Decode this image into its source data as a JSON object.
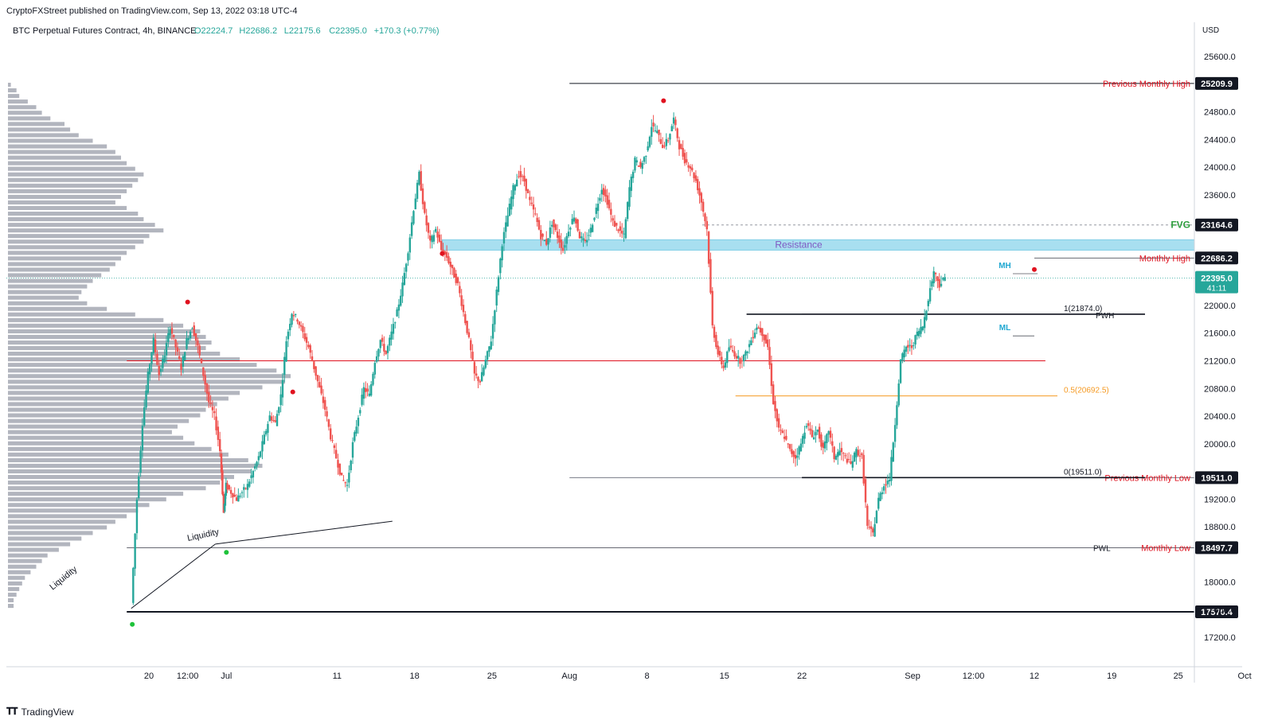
{
  "caption": "CryptoFXStreet published on TradingView.com, Sep 13, 2022 03:18 UTC-4",
  "footer": {
    "brand": "TradingView",
    "logo": "tradingview-logo-icon"
  },
  "chart_data": {
    "type": "candlestick",
    "symbol_line": {
      "name": "BTC Perpetual Futures Contract, 4h, BINANCE",
      "o": "O22224.7",
      "h": "H22686.2",
      "l": "L22175.6",
      "c": "C22395.0",
      "change": "+170.3 (+0.77%)"
    },
    "currency": "USD",
    "colors": {
      "up": "#26a69a",
      "down": "#ef5350",
      "profile": "#b2b5be",
      "resistance": "#a8dff0",
      "fvg": "#2e9e3e",
      "label_red": "#e0121f",
      "fib_orange": "#f59a23",
      "ml_mh": "#1fa7d1",
      "resistance_text": "#7e57c2",
      "price_tag": "#26a69a"
    },
    "y_ticks": [
      "25600.0",
      "24800.0",
      "24400.0",
      "24000.0",
      "23600.0",
      "22000.0",
      "21600.0",
      "21200.0",
      "20800.0",
      "20400.0",
      "20000.0",
      "19200.0",
      "18800.0",
      "18000.0",
      "17600.0",
      "17200.0"
    ],
    "y_ticks_values": [
      25600,
      24800,
      24400,
      24000,
      23600,
      22000,
      21600,
      21200,
      20800,
      20400,
      20000,
      19200,
      18800,
      18000,
      17600,
      17200
    ],
    "x_ticks": [
      {
        "label": "20",
        "day": -10
      },
      {
        "label": "12:00",
        "day": -6.5
      },
      {
        "label": "Jul",
        "day": -3
      },
      {
        "label": "11",
        "day": 7
      },
      {
        "label": "18",
        "day": 14
      },
      {
        "label": "25",
        "day": 21
      },
      {
        "label": "Aug",
        "day": 28
      },
      {
        "label": "8",
        "day": 35
      },
      {
        "label": "15",
        "day": 42
      },
      {
        "label": "22",
        "day": 49
      },
      {
        "label": "Sep",
        "day": 59
      },
      {
        "label": "12:00",
        "day": 64.5
      },
      {
        "label": "12",
        "day": 70
      },
      {
        "label": "19",
        "day": 77
      },
      {
        "label": "25",
        "day": 83
      },
      {
        "label": "Oct",
        "day": 89
      }
    ],
    "price_path": [
      [
        -11.5,
        17700
      ],
      [
        -11,
        19200
      ],
      [
        -10.5,
        20300
      ],
      [
        -10,
        21000
      ],
      [
        -9.5,
        21500
      ],
      [
        -9,
        21000
      ],
      [
        -8.5,
        21300
      ],
      [
        -8,
        21700
      ],
      [
        -7.5,
        21400
      ],
      [
        -7,
        21100
      ],
      [
        -6.5,
        21500
      ],
      [
        -6,
        21700
      ],
      [
        -5.5,
        21400
      ],
      [
        -5,
        21000
      ],
      [
        -4.5,
        20600
      ],
      [
        -4,
        20400
      ],
      [
        -3.5,
        19900
      ],
      [
        -3.2,
        19000
      ],
      [
        -3,
        19400
      ],
      [
        -2.5,
        19300
      ],
      [
        -2,
        19200
      ],
      [
        -1.5,
        19300
      ],
      [
        -1,
        19400
      ],
      [
        -0.5,
        19600
      ],
      [
        0,
        19800
      ],
      [
        0.5,
        20100
      ],
      [
        1,
        20400
      ],
      [
        1.5,
        20300
      ],
      [
        2,
        20700
      ],
      [
        2.5,
        21500
      ],
      [
        3,
        21900
      ],
      [
        3.5,
        21800
      ],
      [
        4,
        21600
      ],
      [
        4.5,
        21400
      ],
      [
        5,
        21100
      ],
      [
        5.5,
        20800
      ],
      [
        6,
        20500
      ],
      [
        6.5,
        20100
      ],
      [
        7,
        19800
      ],
      [
        7.5,
        19500
      ],
      [
        8,
        19400
      ],
      [
        8.5,
        20000
      ],
      [
        9,
        20400
      ],
      [
        9.5,
        20800
      ],
      [
        10,
        20700
      ],
      [
        10.5,
        21200
      ],
      [
        11,
        21500
      ],
      [
        11.5,
        21300
      ],
      [
        12,
        21600
      ],
      [
        12.5,
        21900
      ],
      [
        13,
        22300
      ],
      [
        13.5,
        22800
      ],
      [
        14,
        23400
      ],
      [
        14.5,
        23900
      ],
      [
        15,
        23300
      ],
      [
        15.5,
        22900
      ],
      [
        16,
        23100
      ],
      [
        16.5,
        22800
      ],
      [
        17,
        22700
      ],
      [
        17.5,
        22500
      ],
      [
        18,
        22300
      ],
      [
        18.5,
        21900
      ],
      [
        19,
        21500
      ],
      [
        19.5,
        21000
      ],
      [
        20,
        20900
      ],
      [
        20.5,
        21200
      ],
      [
        21,
        21500
      ],
      [
        21.5,
        22200
      ],
      [
        22,
        22900
      ],
      [
        22.5,
        23300
      ],
      [
        23,
        23700
      ],
      [
        23.5,
        23900
      ],
      [
        24,
        23800
      ],
      [
        24.5,
        23500
      ],
      [
        25,
        23300
      ],
      [
        25.5,
        23000
      ],
      [
        26,
        22900
      ],
      [
        26.5,
        23200
      ],
      [
        27,
        23000
      ],
      [
        27.5,
        22800
      ],
      [
        28,
        23100
      ],
      [
        28.5,
        23300
      ],
      [
        29,
        23000
      ],
      [
        29.5,
        22900
      ],
      [
        30,
        23100
      ],
      [
        30.5,
        23400
      ],
      [
        31,
        23700
      ],
      [
        31.5,
        23500
      ],
      [
        32,
        23200
      ],
      [
        32.5,
        23100
      ],
      [
        33,
        23000
      ],
      [
        33.5,
        23700
      ],
      [
        34,
        24100
      ],
      [
        34.5,
        24000
      ],
      [
        35,
        24200
      ],
      [
        35.5,
        24600
      ],
      [
        36,
        24500
      ],
      [
        36.5,
        24300
      ],
      [
        37,
        24400
      ],
      [
        37.5,
        24700
      ],
      [
        38,
        24300
      ],
      [
        38.5,
        24100
      ],
      [
        39,
        24000
      ],
      [
        39.5,
        23800
      ],
      [
        40,
        23500
      ],
      [
        40.5,
        23100
      ],
      [
        41,
        21700
      ],
      [
        41.5,
        21300
      ],
      [
        42,
        21100
      ],
      [
        42.5,
        21400
      ],
      [
        43,
        21300
      ],
      [
        43.5,
        21200
      ],
      [
        44,
        21300
      ],
      [
        44.5,
        21500
      ],
      [
        45,
        21700
      ],
      [
        45.5,
        21600
      ],
      [
        46,
        21400
      ],
      [
        46.5,
        20600
      ],
      [
        47,
        20200
      ],
      [
        47.5,
        20100
      ],
      [
        48,
        19900
      ],
      [
        48.5,
        19800
      ],
      [
        49,
        20000
      ],
      [
        49.5,
        20300
      ],
      [
        50,
        20100
      ],
      [
        50.5,
        20200
      ],
      [
        51,
        19900
      ],
      [
        51.5,
        20200
      ],
      [
        52,
        19800
      ],
      [
        52.5,
        19900
      ],
      [
        53,
        19800
      ],
      [
        53.5,
        19700
      ],
      [
        54,
        19900
      ],
      [
        54.5,
        19800
      ],
      [
        55,
        18800
      ],
      [
        55.5,
        18700
      ],
      [
        56,
        19200
      ],
      [
        56.5,
        19400
      ],
      [
        57,
        19500
      ],
      [
        57.5,
        20300
      ],
      [
        58,
        21200
      ],
      [
        58.5,
        21400
      ],
      [
        59,
        21400
      ],
      [
        59.5,
        21600
      ],
      [
        60,
        21700
      ],
      [
        60.5,
        22100
      ],
      [
        61,
        22500
      ],
      [
        61.5,
        22300
      ],
      [
        62,
        22400
      ]
    ],
    "volume_profile": [
      0.01,
      0.03,
      0.04,
      0.07,
      0.1,
      0.12,
      0.15,
      0.2,
      0.22,
      0.25,
      0.3,
      0.35,
      0.38,
      0.4,
      0.42,
      0.45,
      0.48,
      0.46,
      0.44,
      0.42,
      0.4,
      0.38,
      0.42,
      0.46,
      0.48,
      0.52,
      0.55,
      0.5,
      0.48,
      0.45,
      0.42,
      0.4,
      0.38,
      0.36,
      0.33,
      0.3,
      0.28,
      0.26,
      0.25,
      0.28,
      0.35,
      0.45,
      0.55,
      0.62,
      0.68,
      0.7,
      0.72,
      0.7,
      0.75,
      0.82,
      0.88,
      0.95,
      1.0,
      0.98,
      0.9,
      0.82,
      0.78,
      0.74,
      0.7,
      0.68,
      0.64,
      0.6,
      0.58,
      0.62,
      0.66,
      0.72,
      0.78,
      0.85,
      0.9,
      0.86,
      0.8,
      0.75,
      0.7,
      0.62,
      0.56,
      0.5,
      0.46,
      0.42,
      0.38,
      0.35,
      0.3,
      0.26,
      0.22,
      0.18,
      0.14,
      0.12,
      0.1,
      0.08,
      0.06,
      0.05,
      0.04,
      0.03,
      0.02,
      0.02
    ],
    "levels": [
      {
        "id": "previous-monthly-high",
        "price": 25209.9,
        "label": "Previous Monthly High",
        "tag": "25209.9",
        "style": "black",
        "from_day": 28,
        "to_day": 91
      },
      {
        "id": "fvg",
        "price": 23164.6,
        "label": "FVG",
        "tag": "23164.6",
        "style": "dashed",
        "from_day": 40,
        "to_day": 91
      },
      {
        "id": "monthly-high",
        "price": 22686.2,
        "label": "Monthly High",
        "tag": "22686.2",
        "style": "thin",
        "from_day": 70,
        "to_day": 91
      },
      {
        "id": "pwh",
        "price": 21874,
        "label": "PWH",
        "style": "black",
        "from_day": 49,
        "to_day": 80
      },
      {
        "id": "red-line",
        "price": 21200,
        "style": "red",
        "from_day": -12,
        "to_day": 71
      },
      {
        "id": "previous-monthly-low",
        "price": 19511,
        "label": "Previous Monthly Low",
        "tag": "19511.0",
        "style": "grey",
        "from_day": 28,
        "to_day": 91
      },
      {
        "id": "monthly-low",
        "price": 18497.7,
        "label": "Monthly Low",
        "tag": "18497.7",
        "style": "thin",
        "from_day": -12,
        "to_day": 91
      },
      {
        "id": "level-17570",
        "price": 17570.4,
        "tag": "17570.4",
        "style": "thick",
        "from_day": -12,
        "to_day": 91
      }
    ],
    "pwl_label": "PWL",
    "resistance": {
      "label": "Resistance",
      "top": 22950,
      "bottom": 22800
    },
    "fib": [
      {
        "label": "1(21874.0)",
        "price": 21874,
        "color": "black"
      },
      {
        "label": "0.5(20692.5)",
        "price": 20692.5,
        "color": "orange"
      },
      {
        "label": "0(19511.0)",
        "price": 19511,
        "color": "black"
      }
    ],
    "mh_label": "MH",
    "mh_price": 22460,
    "ml_label": "ML",
    "ml_price": 21560,
    "current_price": {
      "value": "22395.0",
      "countdown": "41:11",
      "price": 22395
    },
    "liquidity_label": "Liquidity",
    "markers_red": [
      [
        -6.5,
        22050
      ],
      [
        3,
        20750
      ],
      [
        16.5,
        22750
      ],
      [
        36.5,
        24960
      ],
      [
        70,
        22520
      ]
    ],
    "markers_green": [
      [
        -11.5,
        17390
      ],
      [
        -3,
        18430
      ]
    ]
  }
}
